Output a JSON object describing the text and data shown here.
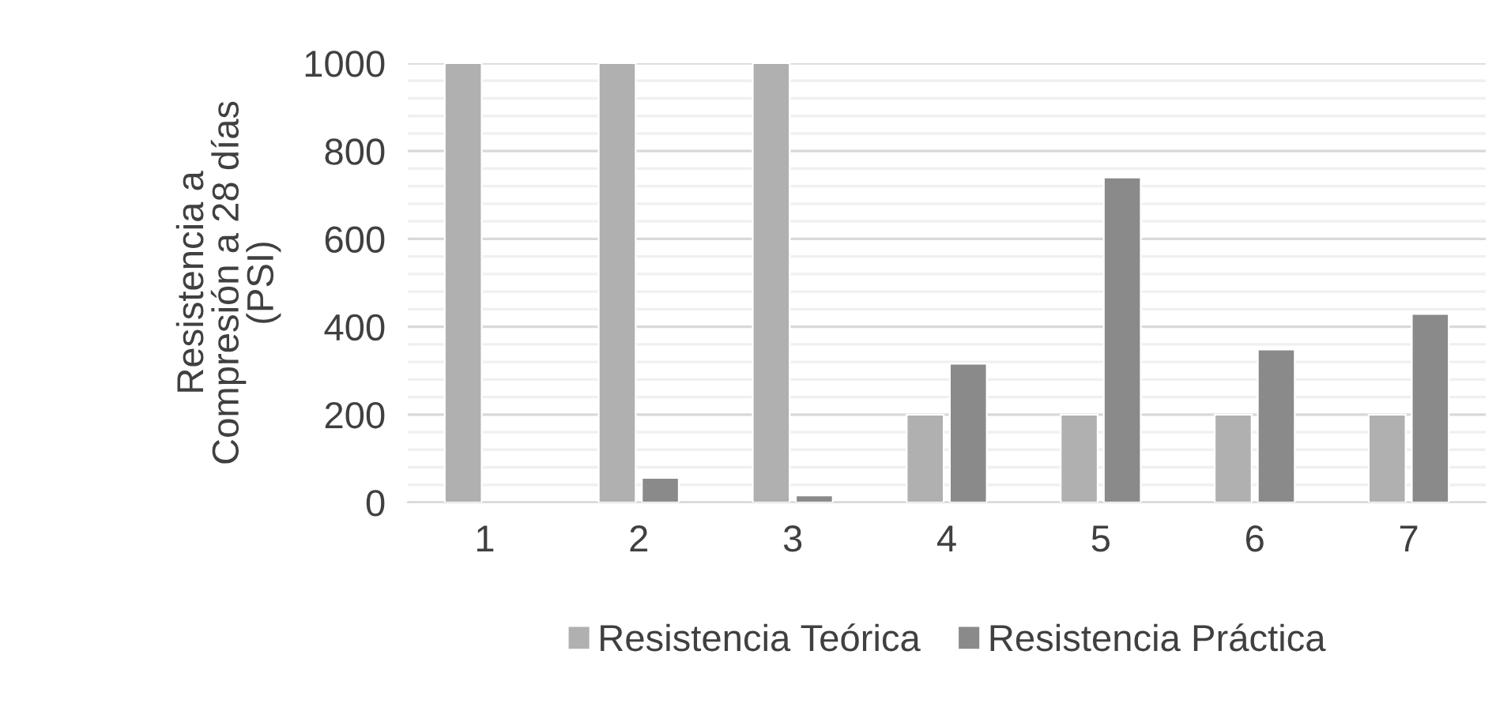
{
  "chart_data": {
    "type": "bar",
    "ylabel": "Resistencia a\nCompresión a 28 días\n(PSI)",
    "categories": [
      "1",
      "2",
      "3",
      "4",
      "5",
      "6",
      "7"
    ],
    "series": [
      {
        "name": "Resistencia Teórica",
        "color": "#b0b0b0",
        "values": [
          1000,
          1000,
          1000,
          200,
          200,
          200,
          200
        ]
      },
      {
        "name": "Resistencia Práctica",
        "color": "#8a8a8a",
        "values": [
          null,
          56,
          16,
          316,
          740,
          348,
          429
        ]
      }
    ],
    "ylim": [
      0,
      1000
    ],
    "yticks": [
      0,
      {
        "value": 40,
        "label": null
      },
      {
        "value": 80,
        "label": null
      },
      {
        "value": 120,
        "label": null
      },
      {
        "value": 160,
        "label": null
      },
      200,
      {
        "value": 240,
        "label": null
      },
      {
        "value": 280,
        "label": null
      },
      {
        "value": 320,
        "label": null
      },
      {
        "value": 360,
        "label": null
      },
      400,
      {
        "value": 440,
        "label": null
      },
      {
        "value": 480,
        "label": null
      },
      {
        "value": 520,
        "label": null
      },
      {
        "value": 560,
        "label": null
      },
      600,
      {
        "value": 640,
        "label": null
      },
      {
        "value": 680,
        "label": null
      },
      {
        "value": 720,
        "label": null
      },
      {
        "value": 760,
        "label": null
      },
      800,
      {
        "value": 840,
        "label": null
      },
      {
        "value": 880,
        "label": null
      },
      {
        "value": 920,
        "label": null
      },
      {
        "value": 960,
        "label": null
      },
      1000
    ],
    "grid": true,
    "legend": "bottom"
  }
}
